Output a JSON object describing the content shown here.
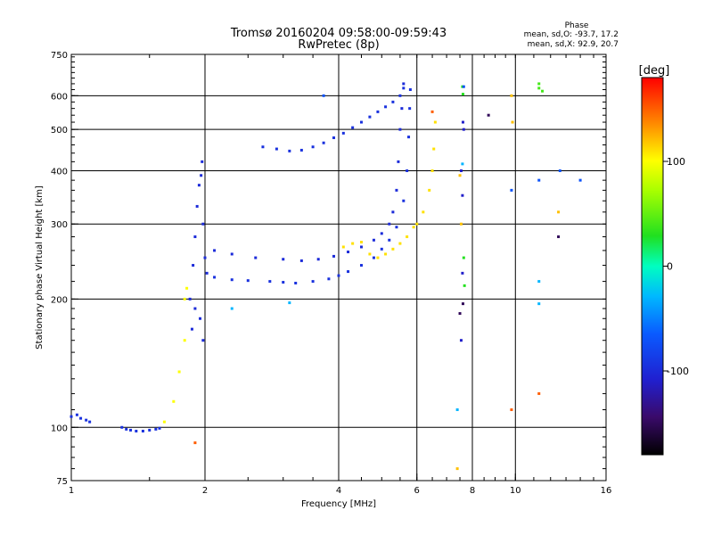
{
  "chart_data": {
    "type": "scatter",
    "title": "Tromsø 20160204 09:58:00-09:59:43",
    "subtitle": "RwPretec (8p)",
    "phase_box": {
      "heading": "Phase",
      "line_o": "mean, sd,O: -93.7, 17.2",
      "line_x": "mean, sd,X:  92.9, 20.7"
    },
    "xlabel": "Frequency [MHz]",
    "ylabel": "Stationary phase Virtual Height [km]",
    "x_scale": "log",
    "y_scale": "log",
    "xlim": [
      1,
      16
    ],
    "ylim": [
      75,
      750
    ],
    "grid": true,
    "x_grid": [
      2,
      4,
      6,
      8,
      10
    ],
    "y_grid": [
      100,
      200,
      300,
      400,
      500,
      600
    ],
    "x_ticks": [
      {
        "v": 1,
        "label": "1"
      },
      {
        "v": 2,
        "label": "2"
      },
      {
        "v": 4,
        "label": "4"
      },
      {
        "v": 6,
        "label": "6"
      },
      {
        "v": 8,
        "label": "8"
      },
      {
        "v": 10,
        "label": "10"
      },
      {
        "v": 16,
        "label": "16"
      }
    ],
    "y_ticks": [
      {
        "v": 75,
        "label": "75"
      },
      {
        "v": 100,
        "label": "100"
      },
      {
        "v": 200,
        "label": "200"
      },
      {
        "v": 300,
        "label": "300"
      },
      {
        "v": 400,
        "label": "400"
      },
      {
        "v": 500,
        "label": "500"
      },
      {
        "v": 600,
        "label": "600"
      },
      {
        "v": 750,
        "label": "750"
      }
    ],
    "colorbar": {
      "unit": "[deg]",
      "range": [
        -180,
        180
      ],
      "ticks": [
        {
          "v": 100,
          "label": "100"
        },
        {
          "v": 0,
          "label": "0"
        },
        {
          "v": -100,
          "label": "-100"
        }
      ]
    },
    "series": [
      {
        "phase": -95,
        "points": [
          [
            1.0,
            106
          ],
          [
            1.03,
            107
          ],
          [
            1.05,
            105
          ],
          [
            1.08,
            104
          ],
          [
            1.1,
            103
          ],
          [
            1.3,
            100
          ],
          [
            1.33,
            99
          ],
          [
            1.36,
            98.5
          ],
          [
            1.4,
            98
          ],
          [
            1.45,
            98
          ],
          [
            1.5,
            98.5
          ],
          [
            1.55,
            99
          ],
          [
            1.58,
            99.5
          ]
        ]
      },
      {
        "phase": -100,
        "points": [
          [
            1.85,
            200
          ],
          [
            1.88,
            240
          ],
          [
            1.9,
            280
          ],
          [
            1.92,
            330
          ],
          [
            1.94,
            370
          ],
          [
            1.96,
            390
          ],
          [
            1.97,
            420
          ],
          [
            1.98,
            300
          ],
          [
            2.0,
            250
          ],
          [
            1.95,
            180
          ],
          [
            1.98,
            160
          ],
          [
            2.02,
            230
          ],
          [
            1.9,
            190
          ],
          [
            1.87,
            170
          ]
        ]
      },
      {
        "phase": -95,
        "points": [
          [
            2.1,
            225
          ],
          [
            2.3,
            222
          ],
          [
            2.5,
            221
          ],
          [
            2.8,
            220
          ],
          [
            3.0,
            219
          ],
          [
            3.2,
            218
          ],
          [
            3.5,
            220
          ],
          [
            3.8,
            223
          ],
          [
            4.0,
            227
          ],
          [
            4.2,
            232
          ],
          [
            4.5,
            240
          ],
          [
            4.8,
            250
          ],
          [
            5.0,
            262
          ],
          [
            5.2,
            275
          ],
          [
            5.4,
            295
          ],
          [
            5.6,
            340
          ],
          [
            5.7,
            400
          ],
          [
            5.75,
            480
          ],
          [
            5.78,
            560
          ],
          [
            5.8,
            620
          ]
        ]
      },
      {
        "phase": -100,
        "points": [
          [
            2.1,
            260
          ],
          [
            2.3,
            255
          ],
          [
            2.6,
            250
          ],
          [
            3.0,
            248
          ],
          [
            3.3,
            246
          ],
          [
            3.6,
            248
          ],
          [
            3.9,
            252
          ],
          [
            4.2,
            258
          ],
          [
            4.5,
            265
          ],
          [
            4.8,
            275
          ],
          [
            5.0,
            285
          ],
          [
            5.2,
            300
          ],
          [
            5.3,
            320
          ],
          [
            5.4,
            360
          ],
          [
            5.45,
            420
          ],
          [
            5.5,
            500
          ],
          [
            5.55,
            560
          ],
          [
            5.6,
            640
          ]
        ]
      },
      {
        "phase": -95,
        "points": [
          [
            2.7,
            455
          ],
          [
            2.9,
            450
          ],
          [
            3.1,
            445
          ],
          [
            3.3,
            447
          ],
          [
            3.5,
            455
          ],
          [
            3.7,
            465
          ],
          [
            3.9,
            478
          ],
          [
            4.1,
            490
          ],
          [
            4.3,
            505
          ],
          [
            4.5,
            520
          ],
          [
            4.7,
            535
          ],
          [
            4.9,
            550
          ],
          [
            5.1,
            565
          ],
          [
            5.3,
            580
          ],
          [
            5.5,
            600
          ],
          [
            5.6,
            625
          ]
        ]
      },
      {
        "phase": 110,
        "points": [
          [
            4.1,
            265
          ],
          [
            4.3,
            270
          ],
          [
            4.5,
            272
          ],
          [
            4.7,
            255
          ],
          [
            4.9,
            250
          ],
          [
            5.1,
            255
          ],
          [
            5.3,
            262
          ],
          [
            5.5,
            270
          ],
          [
            5.7,
            280
          ],
          [
            5.9,
            295
          ],
          [
            6.0,
            300
          ],
          [
            6.2,
            320
          ],
          [
            6.4,
            360
          ],
          [
            6.5,
            400
          ],
          [
            6.55,
            450
          ],
          [
            6.6,
            520
          ]
        ]
      },
      {
        "phase": 100,
        "points": [
          [
            1.62,
            103
          ],
          [
            1.7,
            115
          ],
          [
            1.75,
            135
          ],
          [
            1.8,
            160
          ],
          [
            1.82,
            212
          ],
          [
            1.8,
            200
          ]
        ]
      },
      {
        "phase": 120,
        "points": [
          [
            7.4,
            80
          ],
          [
            7.5,
            390
          ],
          [
            7.55,
            300
          ],
          [
            9.8,
            600
          ],
          [
            9.85,
            520
          ],
          [
            12.5,
            320
          ]
        ]
      },
      {
        "phase": 30,
        "points": [
          [
            7.6,
            630
          ],
          [
            7.62,
            605
          ],
          [
            7.65,
            250
          ],
          [
            7.68,
            215
          ]
        ]
      },
      {
        "phase": 40,
        "points": [
          [
            11.3,
            640
          ],
          [
            11.3,
            625
          ],
          [
            11.5,
            615
          ]
        ]
      },
      {
        "phase": -110,
        "points": [
          [
            7.55,
            400
          ],
          [
            7.6,
            350
          ],
          [
            7.62,
            520
          ],
          [
            7.65,
            500
          ],
          [
            7.6,
            230
          ],
          [
            7.55,
            160
          ]
        ]
      },
      {
        "phase": -150,
        "points": [
          [
            8.7,
            540
          ],
          [
            12.5,
            280
          ],
          [
            7.62,
            195
          ],
          [
            7.5,
            185
          ]
        ]
      },
      {
        "phase": -70,
        "points": [
          [
            3.7,
            600
          ],
          [
            7.65,
            630
          ],
          [
            9.8,
            360
          ],
          [
            11.3,
            380
          ],
          [
            12.6,
            400
          ],
          [
            14.0,
            380
          ]
        ]
      },
      {
        "phase": -30,
        "points": [
          [
            3.1,
            196
          ],
          [
            2.3,
            190
          ],
          [
            7.6,
            415
          ],
          [
            11.3,
            220
          ],
          [
            11.3,
            195
          ],
          [
            7.4,
            110
          ]
        ]
      },
      {
        "phase": 150,
        "points": [
          [
            6.5,
            550
          ],
          [
            9.8,
            110
          ],
          [
            11.3,
            120
          ],
          [
            1.9,
            92
          ]
        ]
      }
    ]
  }
}
